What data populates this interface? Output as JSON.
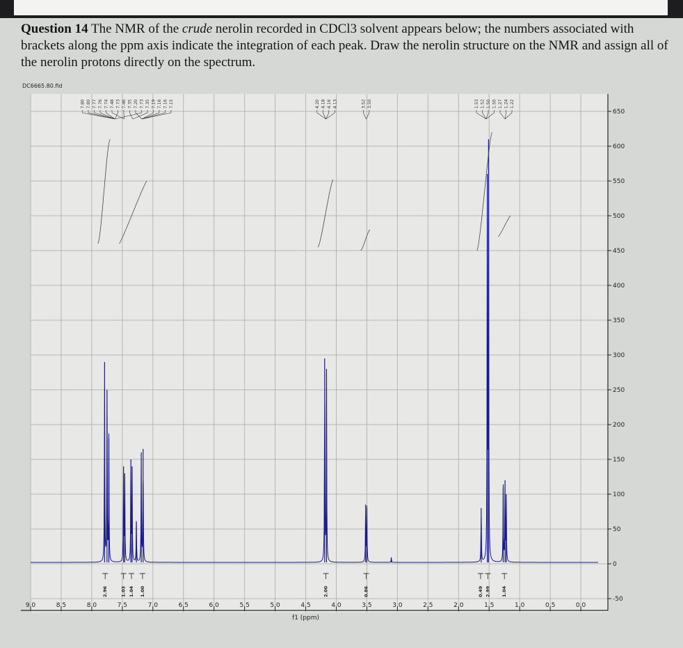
{
  "question": {
    "label": "Question 14",
    "text_before": " The NMR of the ",
    "emphasis": "crude",
    "text_after": " nerolin recorded in CDCl3 solvent appears below; the numbers associated with brackets along the ppm axis indicate the integration of each peak. Draw the nerolin structure on the NMR and assign all of the nerolin protons directly on the spectrum."
  },
  "file_id": "DC6665.80.fid",
  "chart_data": {
    "type": "line",
    "title": "",
    "xlabel": "f1 (ppm)",
    "ylabel": "",
    "xlim": [
      9.0,
      0.0
    ],
    "ylim": [
      -50,
      650
    ],
    "x_ticks": [
      "9.0",
      "8.5",
      "8.0",
      "7.5",
      "7.0",
      "6.5",
      "6.0",
      "5.5",
      "5.0",
      "4.5",
      "4.0",
      "3.5",
      "3.0",
      "2.5",
      "2.0",
      "1.5",
      "1.0",
      "0.5",
      "0.0"
    ],
    "y_ticks": [
      "650",
      "600",
      "550",
      "500",
      "450",
      "400",
      "350",
      "300",
      "250",
      "200",
      "150",
      "100",
      "50",
      "0",
      "-50"
    ],
    "grid": true,
    "line_color": "#1a1a8c",
    "peaks": [
      {
        "ppm": 7.79,
        "height": 290
      },
      {
        "ppm": 7.75,
        "height": 250
      },
      {
        "ppm": 7.72,
        "height": 180
      },
      {
        "ppm": 7.48,
        "height": 140
      },
      {
        "ppm": 7.46,
        "height": 130
      },
      {
        "ppm": 7.36,
        "height": 150
      },
      {
        "ppm": 7.34,
        "height": 140
      },
      {
        "ppm": 7.27,
        "height": 60
      },
      {
        "ppm": 7.19,
        "height": 160
      },
      {
        "ppm": 7.16,
        "height": 165
      },
      {
        "ppm": 4.19,
        "height": 295
      },
      {
        "ppm": 4.16,
        "height": 280
      },
      {
        "ppm": 3.52,
        "height": 85
      },
      {
        "ppm": 3.5,
        "height": 80
      },
      {
        "ppm": 3.1,
        "height": 8
      },
      {
        "ppm": 1.63,
        "height": 80
      },
      {
        "ppm": 1.53,
        "height": 560
      },
      {
        "ppm": 1.51,
        "height": 610
      },
      {
        "ppm": 1.27,
        "height": 110
      },
      {
        "ppm": 1.24,
        "height": 120
      },
      {
        "ppm": 1.22,
        "height": 100
      }
    ],
    "peak_labels": [
      {
        "group_ppm": 7.62,
        "labels": [
          "7.80",
          "7.80",
          "7.77",
          "7.76",
          "7.74",
          "7.73",
          "7.73"
        ]
      },
      {
        "group_ppm": 7.47,
        "labels": [
          "7.48",
          "7.46"
        ]
      },
      {
        "group_ppm": 7.33,
        "labels": [
          "7.35",
          "7.35"
        ]
      },
      {
        "group_ppm": 7.18,
        "labels": [
          "7.20",
          "7.19",
          "7.16",
          "7.16",
          "7.15"
        ]
      },
      {
        "group_ppm": 4.17,
        "labels": [
          "4.20",
          "4.18",
          "4.16",
          "4.13"
        ]
      },
      {
        "group_ppm": 3.51,
        "labels": [
          "3.52",
          "3.50"
        ]
      },
      {
        "group_ppm": 1.55,
        "labels": [
          "1.53",
          "1.52",
          "1.50",
          "1.50"
        ]
      },
      {
        "group_ppm": 1.24,
        "labels": [
          "1.27",
          "1.24",
          "1.22"
        ]
      }
    ],
    "integrations": [
      {
        "ppm": 7.78,
        "value": "2.96"
      },
      {
        "ppm": 7.48,
        "value": "1.03"
      },
      {
        "ppm": 7.35,
        "value": "1.04"
      },
      {
        "ppm": 7.17,
        "value": "1.00"
      },
      {
        "ppm": 4.17,
        "value": "2.00"
      },
      {
        "ppm": 3.51,
        "value": "0.86"
      },
      {
        "ppm": 1.64,
        "value": "0.49"
      },
      {
        "ppm": 1.52,
        "value": "2.99"
      },
      {
        "ppm": 1.25,
        "value": "1.04"
      }
    ]
  }
}
